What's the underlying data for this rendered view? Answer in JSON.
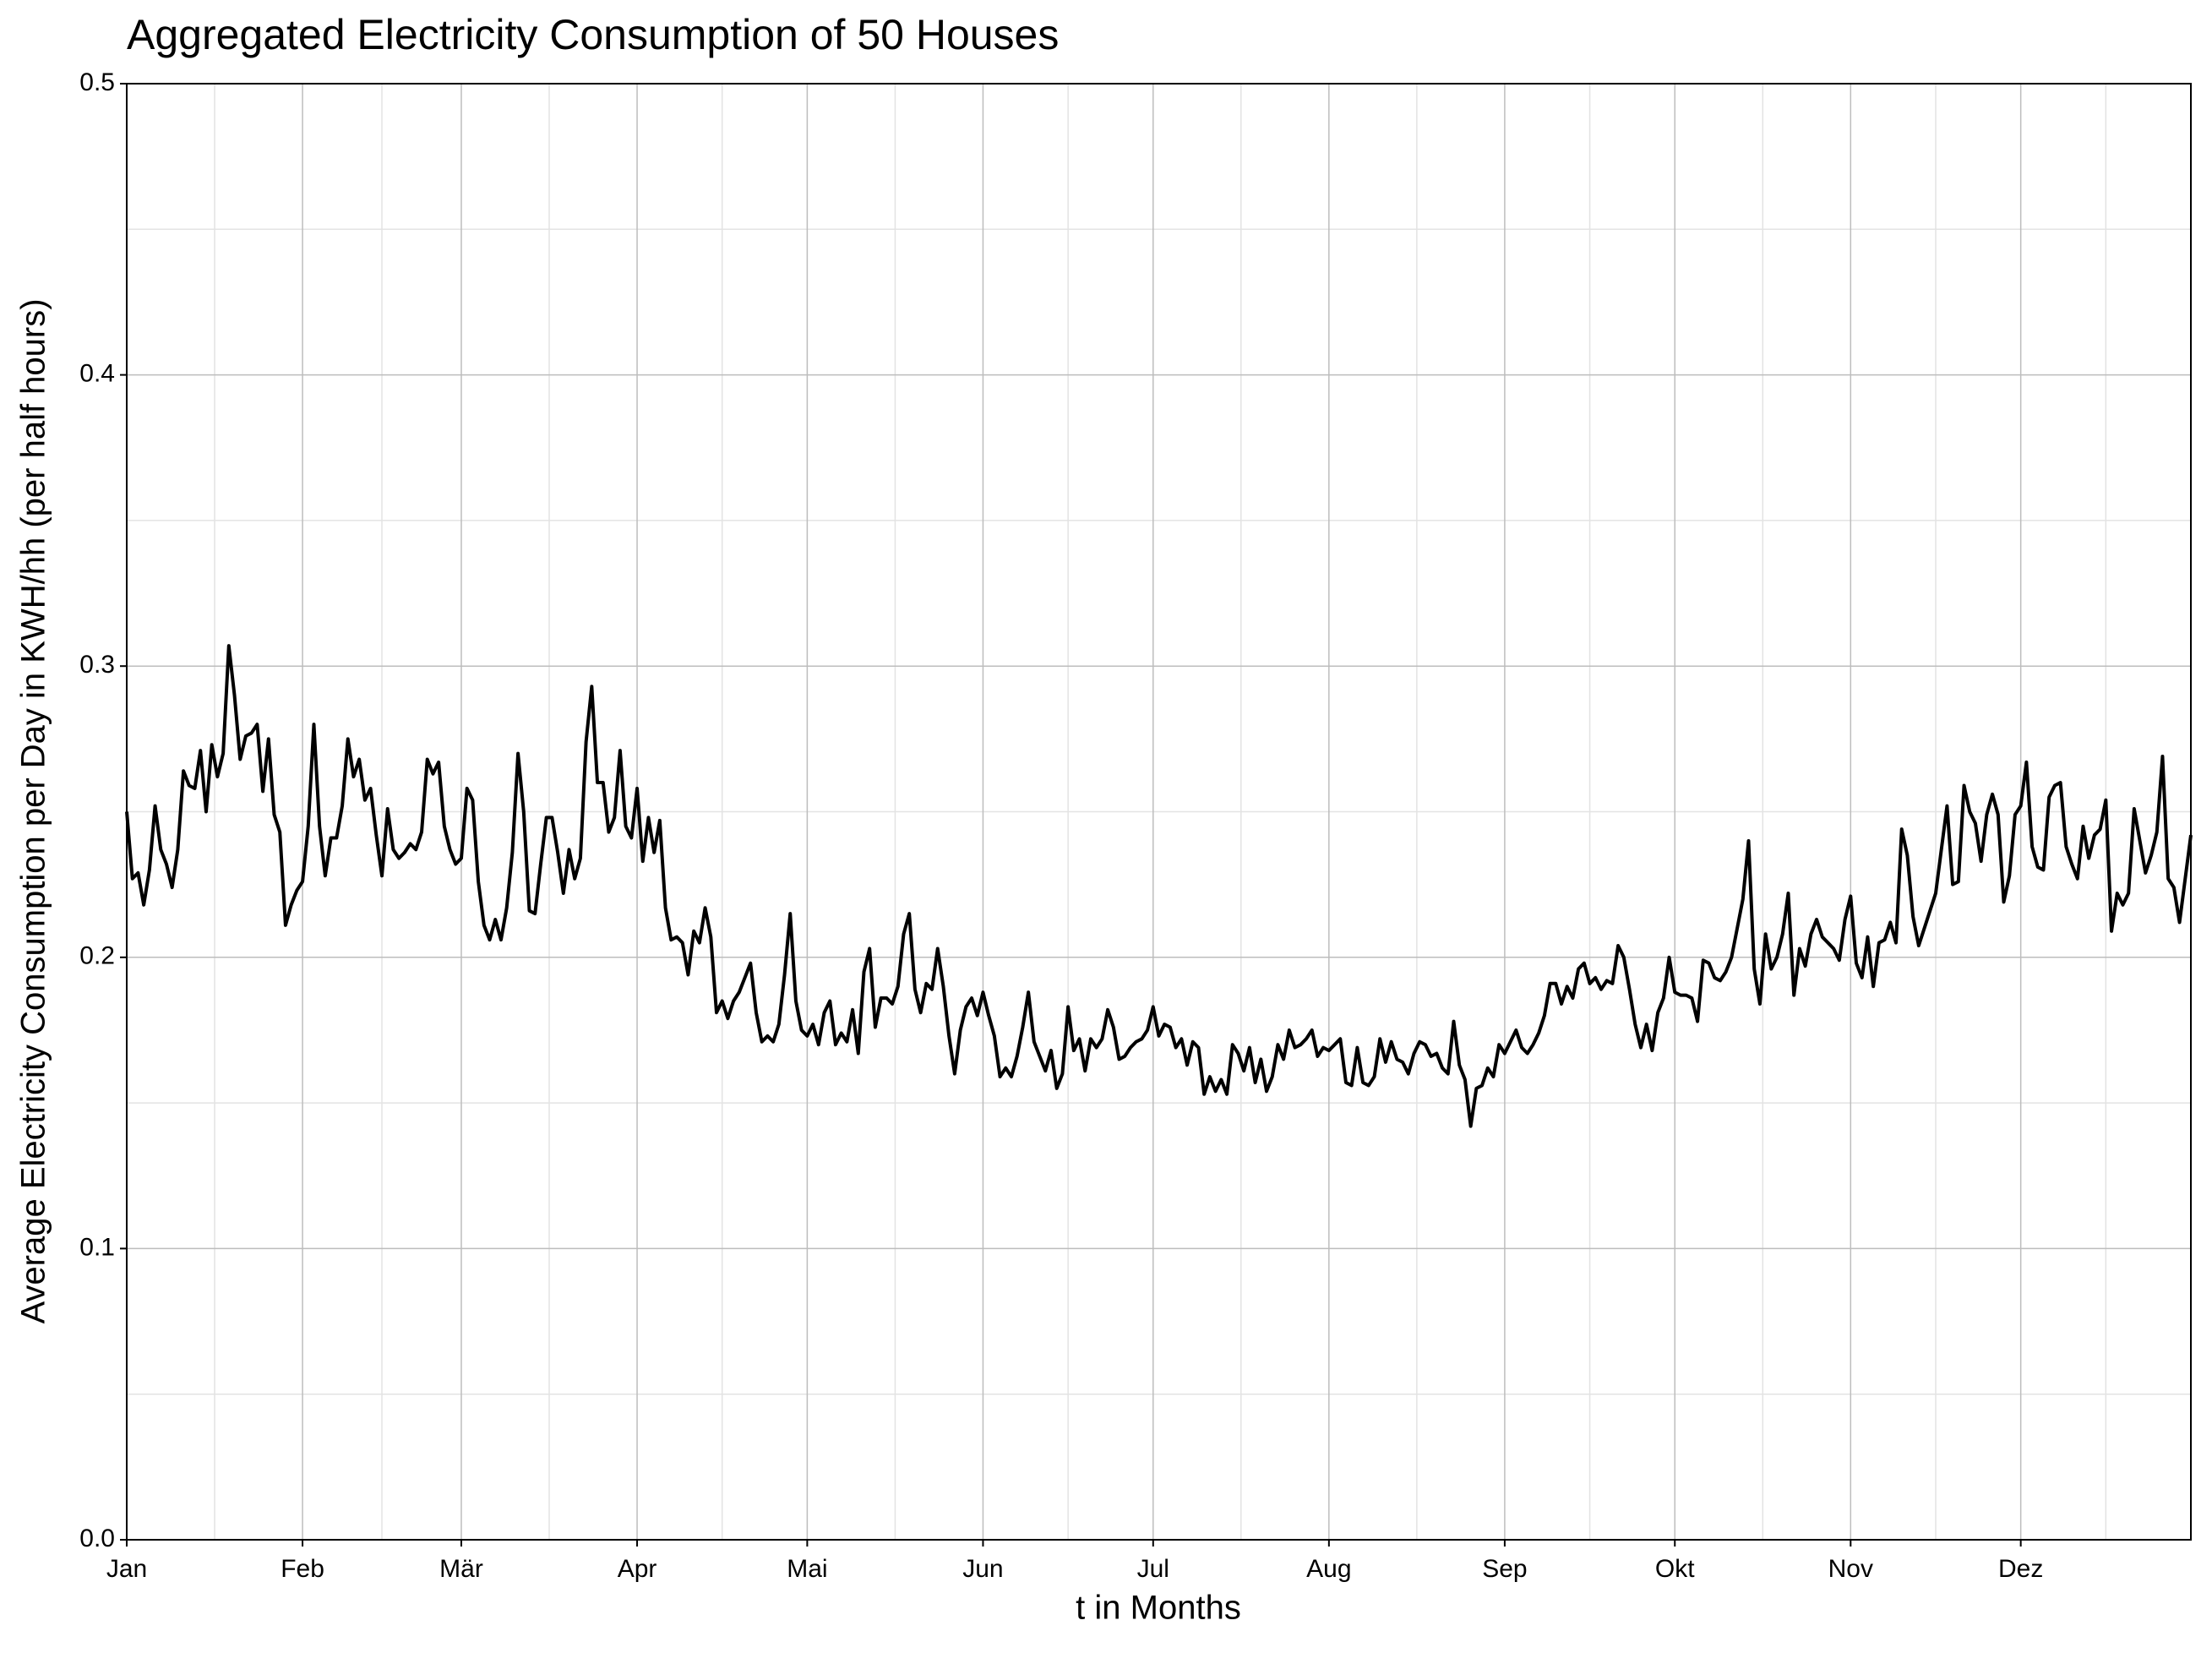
{
  "chart_data": {
    "type": "line",
    "title": "Aggregated Electricity Consumption of 50 Houses",
    "x_label": "t in Months",
    "y_label": "Average Electricity Consumption per Day in KWH/hh (per half hours)",
    "color": "#000000",
    "grid": true,
    "minor_grid": true,
    "xlim": [
      0,
      364
    ],
    "xticks": [
      {
        "value": 0,
        "label": "Jan"
      },
      {
        "value": 31,
        "label": "Feb"
      },
      {
        "value": 59,
        "label": "Mär"
      },
      {
        "value": 90,
        "label": "Apr"
      },
      {
        "value": 120,
        "label": "Mai"
      },
      {
        "value": 151,
        "label": "Jun"
      },
      {
        "value": 181,
        "label": "Jul"
      },
      {
        "value": 212,
        "label": "Aug"
      },
      {
        "value": 243,
        "label": "Sep"
      },
      {
        "value": 273,
        "label": "Okt"
      },
      {
        "value": 304,
        "label": "Nov"
      },
      {
        "value": 334,
        "label": "Dez"
      }
    ],
    "ylim": [
      0,
      0.5
    ],
    "yticks": [
      {
        "value": 0,
        "label": "0.0"
      },
      0.1,
      0.2,
      0.3,
      0.4,
      0.5
    ],
    "values": [
      0.25,
      0.227,
      0.229,
      0.218,
      0.23,
      0.252,
      0.237,
      0.232,
      0.224,
      0.237,
      0.264,
      0.259,
      0.258,
      0.271,
      0.25,
      0.273,
      0.262,
      0.27,
      0.307,
      0.29,
      0.268,
      0.276,
      0.277,
      0.28,
      0.257,
      0.275,
      0.249,
      0.243,
      0.211,
      0.218,
      0.223,
      0.226,
      0.245,
      0.28,
      0.245,
      0.228,
      0.241,
      0.241,
      0.252,
      0.275,
      0.262,
      0.268,
      0.254,
      0.258,
      0.242,
      0.228,
      0.251,
      0.237,
      0.234,
      0.236,
      0.239,
      0.237,
      0.243,
      0.268,
      0.263,
      0.267,
      0.245,
      0.237,
      0.232,
      0.234,
      0.258,
      0.254,
      0.226,
      0.211,
      0.206,
      0.213,
      0.206,
      0.217,
      0.236,
      0.27,
      0.25,
      0.216,
      0.215,
      0.232,
      0.248,
      0.248,
      0.236,
      0.222,
      0.237,
      0.227,
      0.234,
      0.274,
      0.293,
      0.26,
      0.26,
      0.243,
      0.248,
      0.271,
      0.245,
      0.241,
      0.258,
      0.233,
      0.248,
      0.236,
      0.247,
      0.217,
      0.206,
      0.207,
      0.205,
      0.194,
      0.209,
      0.205,
      0.217,
      0.207,
      0.181,
      0.185,
      0.179,
      0.185,
      0.188,
      0.193,
      0.198,
      0.181,
      0.171,
      0.173,
      0.171,
      0.177,
      0.194,
      0.215,
      0.185,
      0.175,
      0.173,
      0.177,
      0.17,
      0.181,
      0.185,
      0.17,
      0.174,
      0.171,
      0.182,
      0.167,
      0.195,
      0.203,
      0.176,
      0.186,
      0.186,
      0.184,
      0.19,
      0.208,
      0.215,
      0.189,
      0.181,
      0.191,
      0.189,
      0.203,
      0.19,
      0.173,
      0.16,
      0.175,
      0.183,
      0.186,
      0.18,
      0.188,
      0.18,
      0.173,
      0.159,
      0.162,
      0.159,
      0.166,
      0.176,
      0.188,
      0.171,
      0.166,
      0.161,
      0.168,
      0.155,
      0.16,
      0.183,
      0.168,
      0.172,
      0.161,
      0.172,
      0.169,
      0.172,
      0.182,
      0.176,
      0.165,
      0.166,
      0.169,
      0.171,
      0.172,
      0.175,
      0.183,
      0.173,
      0.177,
      0.176,
      0.169,
      0.172,
      0.163,
      0.171,
      0.169,
      0.153,
      0.159,
      0.154,
      0.158,
      0.153,
      0.17,
      0.167,
      0.161,
      0.169,
      0.157,
      0.165,
      0.154,
      0.159,
      0.17,
      0.165,
      0.175,
      0.169,
      0.17,
      0.172,
      0.175,
      0.166,
      0.169,
      0.168,
      0.17,
      0.172,
      0.157,
      0.156,
      0.169,
      0.157,
      0.156,
      0.159,
      0.172,
      0.164,
      0.171,
      0.165,
      0.164,
      0.16,
      0.167,
      0.171,
      0.17,
      0.166,
      0.167,
      0.162,
      0.16,
      0.178,
      0.163,
      0.158,
      0.142,
      0.155,
      0.156,
      0.162,
      0.159,
      0.17,
      0.167,
      0.171,
      0.175,
      0.169,
      0.167,
      0.17,
      0.174,
      0.18,
      0.191,
      0.191,
      0.184,
      0.19,
      0.186,
      0.196,
      0.198,
      0.191,
      0.193,
      0.189,
      0.192,
      0.191,
      0.204,
      0.2,
      0.189,
      0.177,
      0.169,
      0.177,
      0.168,
      0.181,
      0.186,
      0.2,
      0.188,
      0.187,
      0.187,
      0.186,
      0.178,
      0.199,
      0.198,
      0.193,
      0.192,
      0.195,
      0.2,
      0.21,
      0.22,
      0.24,
      0.196,
      0.184,
      0.208,
      0.196,
      0.2,
      0.208,
      0.222,
      0.187,
      0.203,
      0.197,
      0.208,
      0.213,
      0.207,
      0.205,
      0.203,
      0.199,
      0.213,
      0.221,
      0.198,
      0.193,
      0.207,
      0.19,
      0.205,
      0.206,
      0.212,
      0.205,
      0.244,
      0.235,
      0.214,
      0.204,
      0.21,
      0.216,
      0.222,
      0.237,
      0.252,
      0.225,
      0.226,
      0.259,
      0.25,
      0.246,
      0.233,
      0.249,
      0.256,
      0.249,
      0.219,
      0.228,
      0.249,
      0.252,
      0.267,
      0.238,
      0.231,
      0.23,
      0.255,
      0.259,
      0.26,
      0.238,
      0.232,
      0.227,
      0.245,
      0.234,
      0.242,
      0.244,
      0.254,
      0.209,
      0.222,
      0.218,
      0.222,
      0.251,
      0.24,
      0.229,
      0.235,
      0.243,
      0.269,
      0.227,
      0.224,
      0.212,
      0.227,
      0.242
    ]
  }
}
